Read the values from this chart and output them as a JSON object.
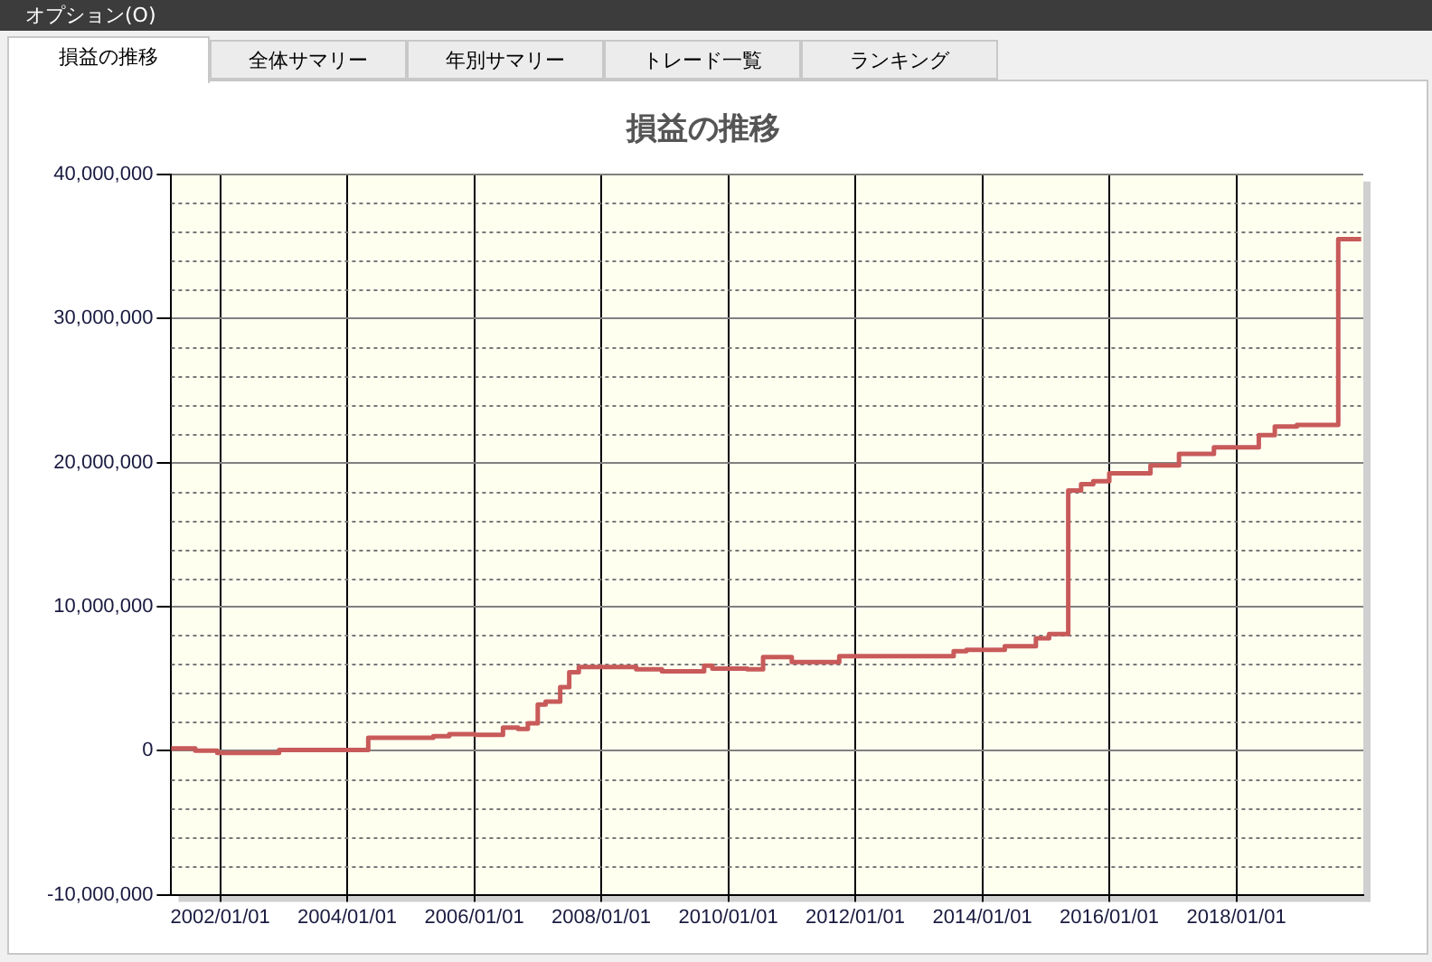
{
  "chart_data": {
    "type": "step",
    "title": "損益の推移",
    "annotations": [
      "オプション(O)",
      "損益の推移",
      "全体サマリー",
      "年別サマリー",
      "トレード一覧",
      "ランキング"
    ],
    "x": [
      "2001-03-25",
      "2001-08-10",
      "2001-12-15",
      "2002-12-05",
      "2004-05-01",
      "2005-05-10",
      "2005-08-10",
      "2006-01-05",
      "2006-06-15",
      "2006-09-10",
      "2006-11-05",
      "2007-01-01",
      "2007-02-15",
      "2007-05-10",
      "2007-07-01",
      "2007-08-25",
      "2008-07-20",
      "2008-12-15",
      "2009-08-15",
      "2009-10-01",
      "2010-04-20",
      "2010-07-20",
      "2011-01-01",
      "2011-10-01",
      "2013-07-20",
      "2013-10-01",
      "2014-05-10",
      "2014-11-05",
      "2015-01-20",
      "2015-05-10",
      "2015-07-23",
      "2015-10-01",
      "2016-01-01",
      "2016-08-25",
      "2017-02-05",
      "2017-08-25",
      "2018-05-10",
      "2018-08-10",
      "2018-12-15",
      "2019-08-10",
      "2019-12-20"
    ],
    "series": [
      {
        "color": "#c85a5a",
        "values": [
          0,
          150000,
          0,
          -150000,
          50000,
          900000,
          1000000,
          1150000,
          1100000,
          1600000,
          1500000,
          1900000,
          3200000,
          3400000,
          4400000,
          5450000,
          5800000,
          5650000,
          5500000,
          5900000,
          5700000,
          5650000,
          6500000,
          6150000,
          6550000,
          6900000,
          7000000,
          7250000,
          7800000,
          8100000,
          18050000,
          18500000,
          18700000,
          19250000,
          19800000,
          20600000,
          21050000,
          21900000,
          22500000,
          22600000,
          35500000
        ]
      }
    ],
    "xlim": [
      "2001-03-25",
      "2020-01-01"
    ],
    "xticks": [
      {
        "value": "2002-01-01",
        "label": "2002/01/01"
      },
      {
        "value": "2004-01-01",
        "label": "2004/01/01"
      },
      {
        "value": "2006-01-01",
        "label": "2006/01/01"
      },
      {
        "value": "2008-01-01",
        "label": "2008/01/01"
      },
      {
        "value": "2010-01-01",
        "label": "2010/01/01"
      },
      {
        "value": "2012-01-01",
        "label": "2012/01/01"
      },
      {
        "value": "2014-01-01",
        "label": "2014/01/01"
      },
      {
        "value": "2016-01-01",
        "label": "2016/01/01"
      },
      {
        "value": "2018-01-01",
        "label": "2018/01/01"
      }
    ],
    "ylim": [
      -10000000,
      40000000
    ],
    "yticks": [
      {
        "value": -10000000,
        "label": "-10,000,000"
      },
      {
        "value": -8000000,
        "label": null
      },
      {
        "value": -6000000,
        "label": null
      },
      {
        "value": -4000000,
        "label": null
      },
      {
        "value": -2000000,
        "label": null
      },
      {
        "value": 0,
        "label": "0"
      },
      {
        "value": 2000000,
        "label": null
      },
      {
        "value": 4000000,
        "label": null
      },
      {
        "value": 6000000,
        "label": null
      },
      {
        "value": 8000000,
        "label": null
      },
      {
        "value": 10000000,
        "label": "10,000,000"
      },
      {
        "value": 12000000,
        "label": null
      },
      {
        "value": 14000000,
        "label": null
      },
      {
        "value": 16000000,
        "label": null
      },
      {
        "value": 18000000,
        "label": null
      },
      {
        "value": 20000000,
        "label": "20,000,000"
      },
      {
        "value": 22000000,
        "label": null
      },
      {
        "value": 24000000,
        "label": null
      },
      {
        "value": 26000000,
        "label": null
      },
      {
        "value": 28000000,
        "label": null
      },
      {
        "value": 30000000,
        "label": "30,000,000"
      },
      {
        "value": 32000000,
        "label": null
      },
      {
        "value": 34000000,
        "label": null
      },
      {
        "value": 36000000,
        "label": null
      },
      {
        "value": 38000000,
        "label": null
      },
      {
        "value": 40000000,
        "label": "40,000,000"
      }
    ],
    "grid": true,
    "legend": false,
    "marker": "none",
    "line_style": "solid"
  }
}
